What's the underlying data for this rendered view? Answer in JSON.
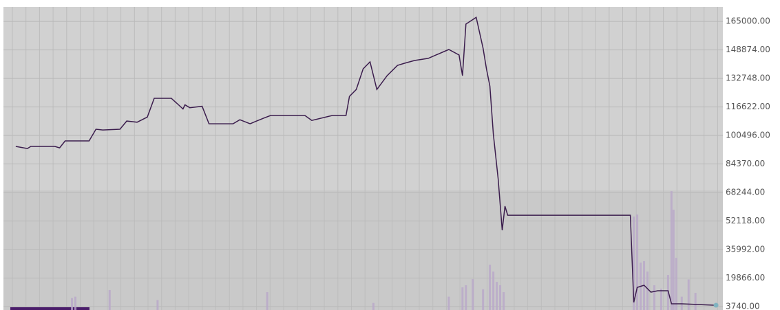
{
  "chart_data": {
    "type": "line",
    "xlim": [
      0,
      1050
    ],
    "ylim": [
      1800,
      173200
    ],
    "yticks": [
      {
        "value": 3740,
        "label": "3740.00"
      },
      {
        "value": 19866,
        "label": "19866.00"
      },
      {
        "value": 35992,
        "label": "35992.00"
      },
      {
        "value": 52118,
        "label": "52118.00"
      },
      {
        "value": 68244,
        "label": "68244.00"
      },
      {
        "value": 84370,
        "label": "84370.00"
      },
      {
        "value": 100496,
        "label": "100496.00"
      },
      {
        "value": 116622,
        "label": "116622.00"
      },
      {
        "value": 132748,
        "label": "132748.00"
      },
      {
        "value": 148874,
        "label": "148874.00"
      },
      {
        "value": 165000,
        "label": "165000.00"
      }
    ],
    "grid": true,
    "series": [
      {
        "type": "line",
        "color": "#3b1d4d",
        "x": [
          18,
          35,
          40,
          75,
          82,
          90,
          125,
          135,
          145,
          170,
          180,
          195,
          210,
          220,
          245,
          255,
          262,
          265,
          272,
          290,
          300,
          335,
          345,
          360,
          368,
          380,
          390,
          440,
          450,
          480,
          500,
          505,
          515,
          525,
          535,
          545,
          560,
          575,
          585,
          600,
          620,
          650,
          665,
          670,
          675,
          690,
          700,
          705,
          710,
          715,
          722,
          728,
          732,
          736,
          760,
          800,
          850,
          915,
          920,
          925,
          935,
          945,
          955,
          970,
          975,
          990,
          1040
        ],
        "values": [
          94300,
          93100,
          94300,
          94300,
          93500,
          97400,
          97400,
          104000,
          103600,
          104000,
          108650,
          108000,
          110900,
          121500,
          121500,
          118000,
          115500,
          117800,
          116200,
          117000,
          107100,
          107100,
          109400,
          107100,
          108400,
          110300,
          111800,
          111800,
          109000,
          111800,
          111800,
          122600,
          126500,
          138200,
          142100,
          126500,
          134300,
          140100,
          141300,
          142900,
          144100,
          149100,
          146000,
          134300,
          163500,
          167300,
          149800,
          138200,
          128400,
          101300,
          76000,
          46900,
          60500,
          55400,
          55400,
          55400,
          55400,
          55400,
          6100,
          14600,
          15800,
          11900,
          12700,
          12700,
          5300,
          5300,
          4500
        ]
      },
      {
        "type": "bar",
        "color": "#b9a8c9",
        "x": [
          100,
          105,
          155,
          225,
          385,
          540,
          650,
          670,
          675,
          685,
          700,
          710,
          715,
          720,
          725,
          730,
          920,
          925,
          930,
          935,
          940,
          950,
          960,
          970,
          975,
          978,
          982,
          990,
          1000,
          1010
        ],
        "values": [
          8570,
          9350,
          13080,
          7400,
          11910,
          5800,
          9350,
          14610,
          15800,
          19280,
          13470,
          27430,
          23550,
          17720,
          15800,
          11910,
          54640,
          55800,
          28600,
          29400,
          23550,
          15800,
          13860,
          21600,
          69010,
          58520,
          31300,
          9350,
          19100,
          11500
        ]
      }
    ]
  }
}
